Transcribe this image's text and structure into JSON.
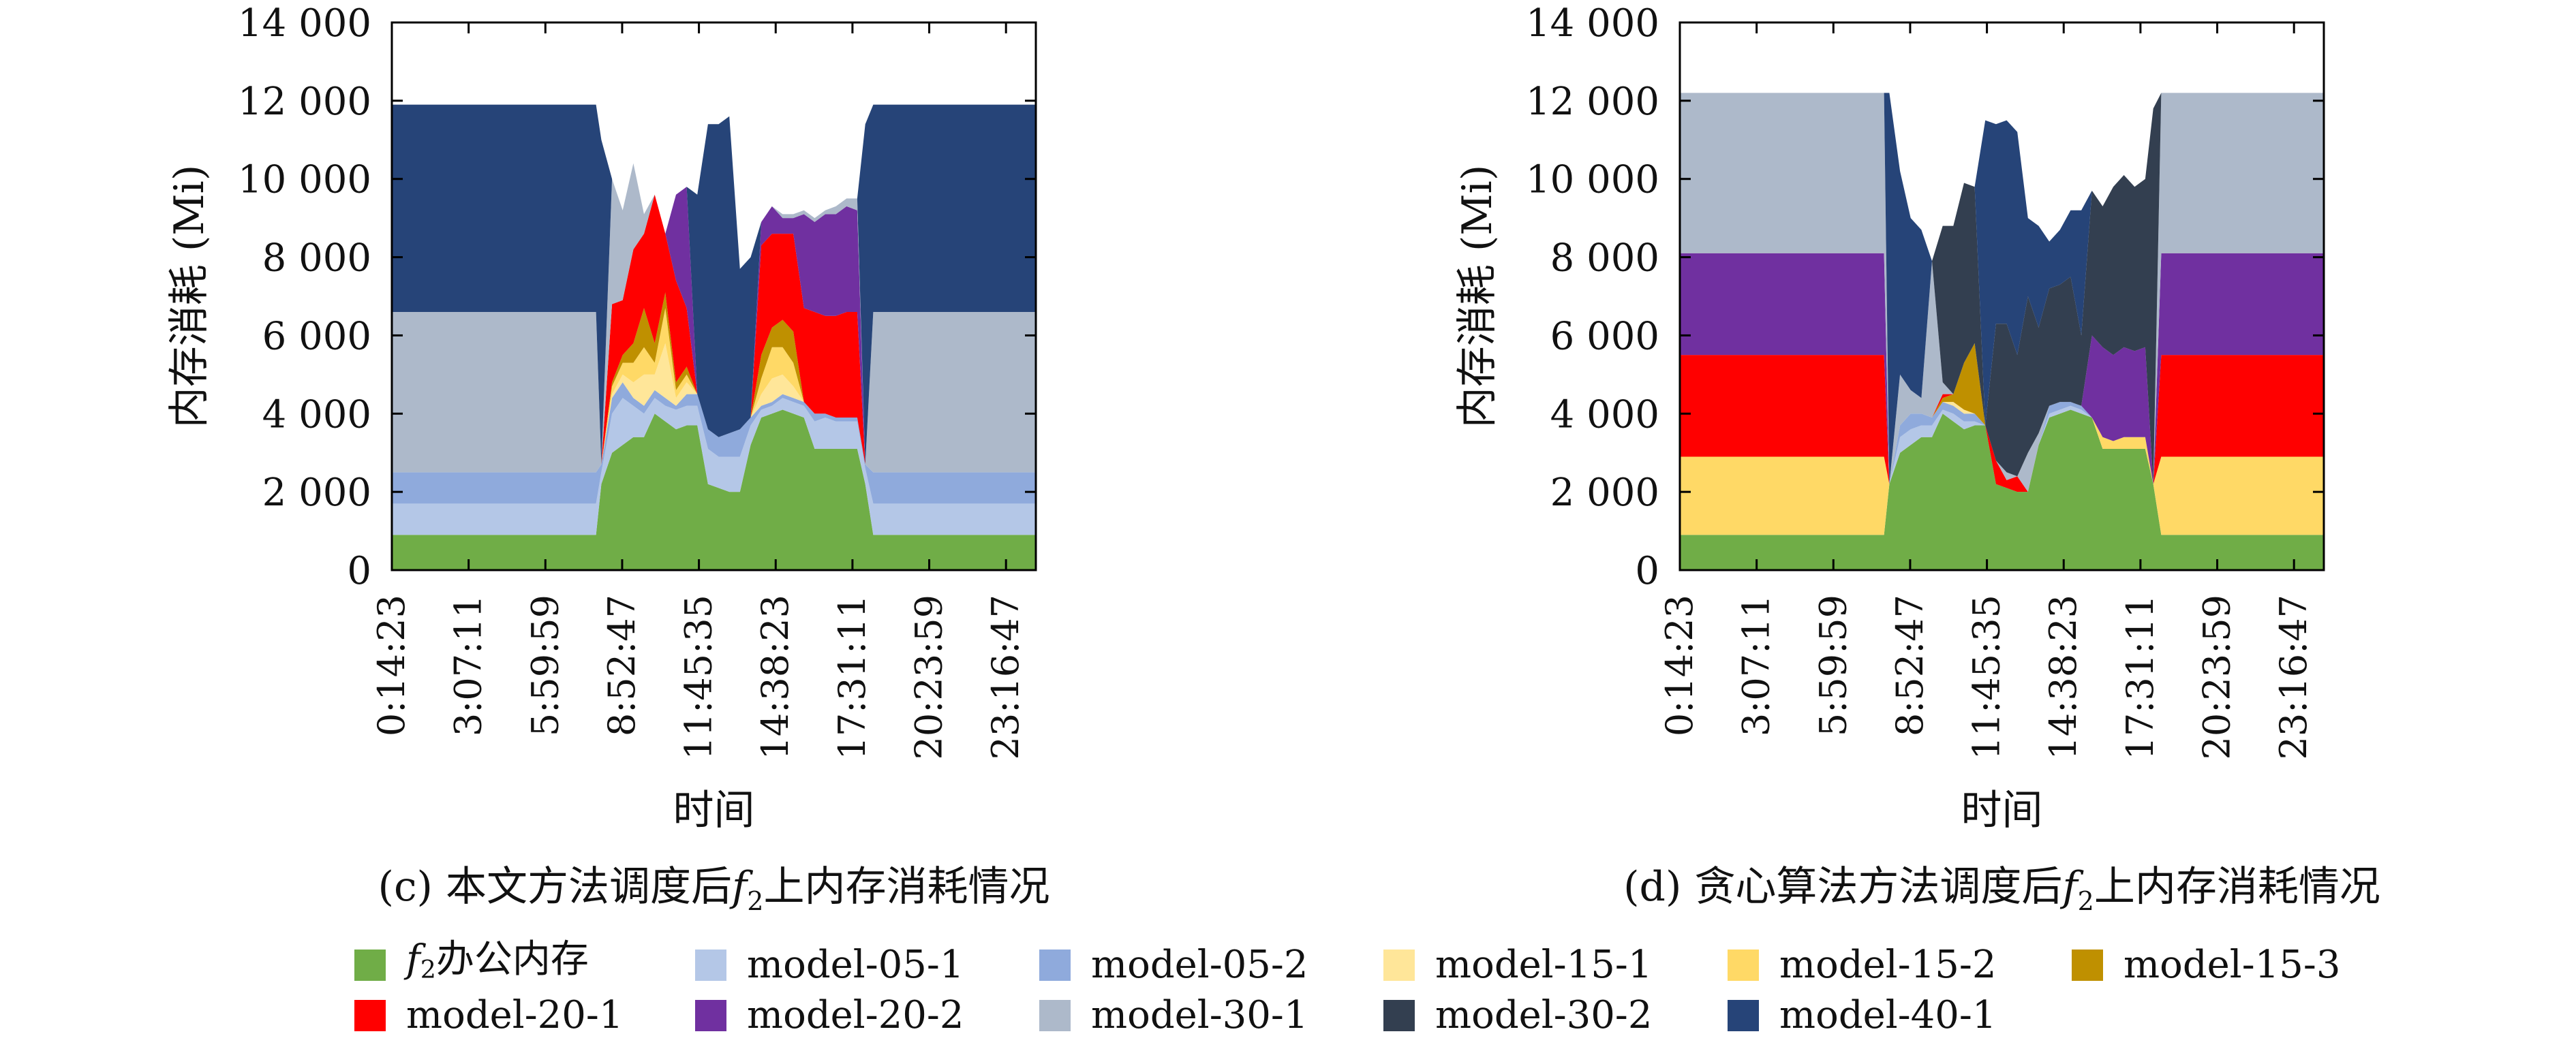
{
  "colors": {
    "office": "#70AD47",
    "model-05-1": "#B4C7E7",
    "model-05-2": "#8FAADC",
    "model-15-1": "#FFE699",
    "model-15-2": "#FFD966",
    "model-15-3": "#BF9000",
    "model-20-1": "#FF0000",
    "model-20-2": "#7030A0",
    "model-30-1": "#ADB9CA",
    "model-30-2": "#333F50",
    "model-40-1": "#264478"
  },
  "legend": [
    {
      "key": "office",
      "prefix": "f",
      "sub": "2",
      "suffix": "办公内存"
    },
    {
      "key": "model-05-1",
      "prefix": "model-05-1",
      "sub": "",
      "suffix": ""
    },
    {
      "key": "model-05-2",
      "prefix": "model-05-2",
      "sub": "",
      "suffix": ""
    },
    {
      "key": "model-15-1",
      "prefix": "model-15-1",
      "sub": "",
      "suffix": ""
    },
    {
      "key": "model-15-2",
      "prefix": "model-15-2",
      "sub": "",
      "suffix": ""
    },
    {
      "key": "model-15-3",
      "prefix": "model-15-3",
      "sub": "",
      "suffix": ""
    },
    {
      "key": "model-20-1",
      "prefix": "model-20-1",
      "sub": "",
      "suffix": ""
    },
    {
      "key": "model-20-2",
      "prefix": "model-20-2",
      "sub": "",
      "suffix": ""
    },
    {
      "key": "model-30-1",
      "prefix": "model-30-1",
      "sub": "",
      "suffix": ""
    },
    {
      "key": "model-30-2",
      "prefix": "model-30-2",
      "sub": "",
      "suffix": ""
    },
    {
      "key": "model-40-1",
      "prefix": "model-40-1",
      "sub": "",
      "suffix": ""
    }
  ],
  "chart_data": [
    {
      "type": "area",
      "stacked": true,
      "caption": {
        "prefix": "(c) 本文方法调度后",
        "f": "f",
        "sub": "2",
        "suffix": "上内存消耗情况"
      },
      "xlabel": "时间",
      "ylabel": "内存消耗 (Mi)",
      "ylim": [
        0,
        14000
      ],
      "yticks": [
        0,
        2000,
        4000,
        6000,
        8000,
        10000,
        12000,
        14000
      ],
      "ytick_labels": [
        "0",
        "2 000",
        "4 000",
        "6 000",
        "8 000",
        "10 000",
        "12 000",
        "14 000"
      ],
      "xlim": [
        0.24,
        24.4
      ],
      "xticks": [
        0.24,
        3.12,
        6.0,
        8.88,
        11.76,
        14.64,
        17.52,
        20.4,
        23.28
      ],
      "xtick_labels": [
        "0:14:23",
        "3:07:11",
        "5:59:59",
        "8:52:47",
        "11:45:35",
        "14:38:23",
        "17:31:11",
        "20:23:59",
        "23:16:47"
      ],
      "x": [
        0.24,
        7.9,
        8.1,
        8.5,
        8.9,
        9.3,
        9.7,
        10.1,
        10.5,
        10.9,
        11.3,
        11.7,
        12.1,
        12.5,
        12.9,
        13.3,
        13.7,
        14.1,
        14.5,
        14.9,
        15.3,
        15.7,
        16.1,
        16.5,
        16.9,
        17.3,
        17.7,
        18.0,
        18.3,
        18.6,
        24.4
      ],
      "series": [
        {
          "key": "office",
          "values": [
            900,
            900,
            2200,
            3000,
            3200,
            3400,
            3400,
            4000,
            3800,
            3600,
            3700,
            3700,
            2200,
            2100,
            2000,
            2000,
            3200,
            3900,
            4000,
            4100,
            4000,
            3900,
            3100,
            3100,
            3100,
            3100,
            3100,
            2200,
            900,
            900,
            900
          ]
        },
        {
          "key": "model-05-1",
          "values": [
            800,
            800,
            300,
            1000,
            1200,
            800,
            600,
            400,
            400,
            500,
            500,
            500,
            900,
            800,
            900,
            900,
            500,
            200,
            200,
            300,
            300,
            300,
            700,
            800,
            700,
            700,
            700,
            400,
            800,
            800,
            800
          ]
        },
        {
          "key": "model-05-2",
          "values": [
            800,
            800,
            200,
            400,
            400,
            200,
            200,
            200,
            200,
            100,
            300,
            300,
            500,
            500,
            600,
            700,
            200,
            100,
            100,
            100,
            100,
            100,
            200,
            100,
            100,
            100,
            100,
            100,
            800,
            800,
            800
          ]
        },
        {
          "key": "model-15-1",
          "values": [
            0,
            0,
            0,
            100,
            200,
            400,
            800,
            400,
            1400,
            200,
            300,
            0,
            0,
            0,
            0,
            0,
            0,
            300,
            600,
            500,
            300,
            0,
            0,
            0,
            0,
            0,
            0,
            0,
            0,
            0,
            0
          ]
        },
        {
          "key": "model-15-2",
          "values": [
            0,
            0,
            0,
            200,
            300,
            500,
            700,
            300,
            900,
            200,
            200,
            0,
            0,
            0,
            0,
            0,
            0,
            400,
            800,
            700,
            600,
            0,
            0,
            0,
            0,
            0,
            0,
            0,
            0,
            0,
            0
          ]
        },
        {
          "key": "model-15-3",
          "values": [
            0,
            0,
            0,
            100,
            200,
            500,
            1000,
            500,
            400,
            200,
            200,
            0,
            0,
            0,
            0,
            0,
            0,
            600,
            500,
            700,
            800,
            0,
            0,
            0,
            0,
            0,
            0,
            0,
            0,
            0,
            0
          ]
        },
        {
          "key": "model-20-1",
          "values": [
            0,
            0,
            0,
            2000,
            1400,
            2400,
            1900,
            3800,
            1500,
            2600,
            1500,
            0,
            0,
            0,
            0,
            0,
            0,
            2800,
            2400,
            2200,
            2500,
            2400,
            2600,
            2500,
            2600,
            2700,
            2700,
            0,
            0,
            0,
            0
          ]
        },
        {
          "key": "model-20-2",
          "values": [
            0,
            0,
            0,
            0,
            0,
            0,
            0,
            0,
            0,
            2200,
            3100,
            0,
            0,
            0,
            0,
            0,
            0,
            600,
            700,
            400,
            400,
            2400,
            2300,
            2600,
            2600,
            2700,
            2600,
            0,
            0,
            0,
            0
          ]
        },
        {
          "key": "model-30-1",
          "values": [
            4100,
            4100,
            0,
            3200,
            2300,
            2200,
            500,
            0,
            0,
            0,
            0,
            0,
            0,
            0,
            0,
            0,
            0,
            0,
            0,
            100,
            100,
            100,
            100,
            100,
            200,
            200,
            300,
            0,
            4100,
            4100,
            4100
          ]
        },
        {
          "key": "model-30-2",
          "values": [
            0,
            0,
            0,
            0,
            0,
            0,
            0,
            0,
            0,
            0,
            0,
            0,
            0,
            0,
            0,
            0,
            0,
            0,
            0,
            0,
            0,
            0,
            0,
            0,
            0,
            0,
            0,
            0,
            0,
            0,
            0
          ]
        },
        {
          "key": "model-40-1",
          "values": [
            5300,
            5300,
            8300,
            0,
            0,
            0,
            0,
            0,
            0,
            0,
            0,
            5100,
            7800,
            8000,
            8100,
            4100,
            4100,
            0,
            0,
            0,
            0,
            0,
            0,
            0,
            0,
            0,
            0,
            8700,
            5300,
            5300,
            5300
          ]
        }
      ]
    },
    {
      "type": "area",
      "stacked": true,
      "caption": {
        "prefix": "(d) 贪心算法方法调度后",
        "f": "f",
        "sub": "2",
        "suffix": "上内存消耗情况"
      },
      "xlabel": "时间",
      "ylabel": "内存消耗 (Mi)",
      "ylim": [
        0,
        14000
      ],
      "yticks": [
        0,
        2000,
        4000,
        6000,
        8000,
        10000,
        12000,
        14000
      ],
      "ytick_labels": [
        "0",
        "2 000",
        "4 000",
        "6 000",
        "8 000",
        "10 000",
        "12 000",
        "14 000"
      ],
      "xlim": [
        0.24,
        24.4
      ],
      "xticks": [
        0.24,
        3.12,
        6.0,
        8.88,
        11.76,
        14.64,
        17.52,
        20.4,
        23.28
      ],
      "xtick_labels": [
        "0:14:23",
        "3:07:11",
        "5:59:59",
        "8:52:47",
        "11:45:35",
        "14:38:23",
        "17:31:11",
        "20:23:59",
        "23:16:47"
      ],
      "x": [
        0.24,
        7.9,
        8.1,
        8.5,
        8.9,
        9.3,
        9.7,
        10.1,
        10.5,
        10.9,
        11.3,
        11.7,
        12.1,
        12.5,
        12.9,
        13.3,
        13.7,
        14.1,
        14.5,
        14.9,
        15.3,
        15.7,
        16.1,
        16.5,
        16.9,
        17.3,
        17.7,
        18.0,
        18.3,
        18.6,
        24.4
      ],
      "series": [
        {
          "key": "office",
          "values": [
            900,
            900,
            2200,
            3000,
            3200,
            3400,
            3400,
            4000,
            3800,
            3600,
            3700,
            3700,
            2200,
            2100,
            2000,
            2000,
            3200,
            3900,
            4000,
            4100,
            4000,
            3900,
            3100,
            3100,
            3100,
            3100,
            3100,
            2200,
            900,
            900,
            900
          ]
        },
        {
          "key": "model-05-1",
          "values": [
            0,
            0,
            0,
            400,
            400,
            300,
            300,
            100,
            200,
            200,
            100,
            0,
            0,
            0,
            0,
            0,
            0,
            100,
            100,
            100,
            100,
            0,
            0,
            0,
            0,
            0,
            0,
            0,
            0,
            0,
            0
          ]
        },
        {
          "key": "model-05-2",
          "values": [
            0,
            0,
            0,
            300,
            400,
            300,
            200,
            200,
            200,
            200,
            200,
            0,
            0,
            0,
            0,
            0,
            0,
            200,
            200,
            100,
            100,
            0,
            0,
            0,
            0,
            0,
            0,
            0,
            0,
            0,
            0
          ]
        },
        {
          "key": "model-15-1",
          "values": [
            0,
            0,
            0,
            0,
            0,
            0,
            0,
            0,
            100,
            100,
            0,
            0,
            0,
            0,
            0,
            0,
            0,
            0,
            0,
            0,
            0,
            0,
            0,
            0,
            0,
            0,
            0,
            0,
            0,
            0,
            0
          ]
        },
        {
          "key": "model-15-2",
          "values": [
            2000,
            2000,
            0,
            0,
            0,
            0,
            0,
            0,
            0,
            0,
            0,
            0,
            0,
            0,
            0,
            0,
            0,
            0,
            0,
            0,
            0,
            0,
            300,
            200,
            300,
            300,
            300,
            0,
            2000,
            2000,
            2000
          ]
        },
        {
          "key": "model-15-3",
          "values": [
            0,
            0,
            0,
            0,
            0,
            0,
            0,
            100,
            200,
            1200,
            1800,
            0,
            0,
            0,
            0,
            0,
            0,
            0,
            0,
            0,
            0,
            0,
            0,
            0,
            0,
            0,
            0,
            0,
            0,
            0,
            0
          ]
        },
        {
          "key": "model-20-1",
          "values": [
            2600,
            2600,
            0,
            0,
            0,
            0,
            0,
            100,
            0,
            0,
            0,
            0,
            600,
            200,
            400,
            0,
            0,
            0,
            0,
            0,
            0,
            0,
            0,
            0,
            0,
            0,
            0,
            0,
            2600,
            2600,
            2600
          ]
        },
        {
          "key": "model-20-2",
          "values": [
            2600,
            2600,
            0,
            0,
            0,
            0,
            0,
            0,
            0,
            0,
            0,
            0,
            0,
            0,
            0,
            0,
            0,
            0,
            0,
            0,
            0,
            2100,
            2300,
            2200,
            2300,
            2200,
            2300,
            0,
            2600,
            2600,
            2600
          ]
        },
        {
          "key": "model-30-1",
          "values": [
            4100,
            4100,
            0,
            1300,
            600,
            400,
            4000,
            300,
            0,
            0,
            0,
            0,
            0,
            200,
            0,
            1000,
            300,
            0,
            0,
            0,
            0,
            0,
            0,
            0,
            0,
            0,
            0,
            0,
            4100,
            4100,
            4100
          ]
        },
        {
          "key": "model-30-2",
          "values": [
            0,
            0,
            0,
            0,
            0,
            0,
            0,
            4000,
            4300,
            4600,
            4000,
            0,
            3500,
            3800,
            3100,
            4000,
            2700,
            3000,
            3000,
            3200,
            1800,
            3700,
            3600,
            4300,
            4400,
            4200,
            4300,
            9600,
            0,
            0,
            0
          ]
        },
        {
          "key": "model-40-1",
          "values": [
            0,
            0,
            10000,
            5200,
            4400,
            4300,
            0,
            0,
            0,
            0,
            0,
            7800,
            5100,
            5200,
            5700,
            2000,
            2600,
            1200,
            1400,
            1700,
            3200,
            0,
            0,
            0,
            0,
            0,
            0,
            0,
            0,
            0,
            0
          ]
        }
      ]
    }
  ]
}
